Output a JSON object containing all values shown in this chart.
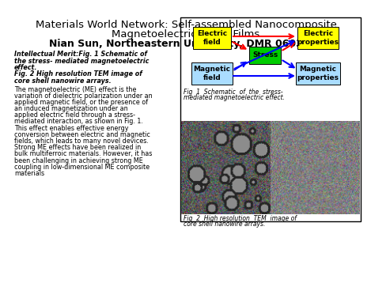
{
  "title_line1": "Materials World Network: Self-assembled Nanocomposite",
  "title_line2": "Magnetoelectric  Thin  Films",
  "title_line3": "Nian Sun, Northeastern University, DMR 0603115",
  "bg_color": "#ffffff",
  "box_colors": {
    "electric_field": "#ffff00",
    "electric_properties": "#ffff00",
    "magnetic_field": "#aaddff",
    "magnetic_properties": "#aaddff",
    "stress": "#00cc00"
  },
  "heading_lines": [
    "Intellectual Merit:Fig. 1 Schematic of",
    "the stress- mediated magnetoelectric",
    "effect.",
    "Fig. 2 High resolution TEM image of",
    "core shell nanowire arrays."
  ],
  "body_lines": [
    "The magnetoelectric (ME) effect is the",
    "variation of dielectric polarization under an",
    "applied magnetic field, or the presence of",
    "an induced magnetization under an",
    "applied electric field through a stress-",
    "mediated interaction, as shown in Fig. 1.",
    "This effect enables effective energy",
    "conversion between electric and magnetic",
    "fields, which leads to many novel devices.",
    "Strong ME effects have been realized in",
    "bulk multiferroic materials. However, it has",
    "been challenging in achieving strong ME",
    "coupling in low-dimensional ME composite",
    "materials"
  ],
  "fig1_caption_line1": "Fig  1  Schematic  of  the  stress-",
  "fig1_caption_line2": "mediated magnetoelectric effect.",
  "fig2_caption_line1": "Fig  2  High resolution  TEM  image of",
  "fig2_caption_line2": "core shell nanowire arrays."
}
